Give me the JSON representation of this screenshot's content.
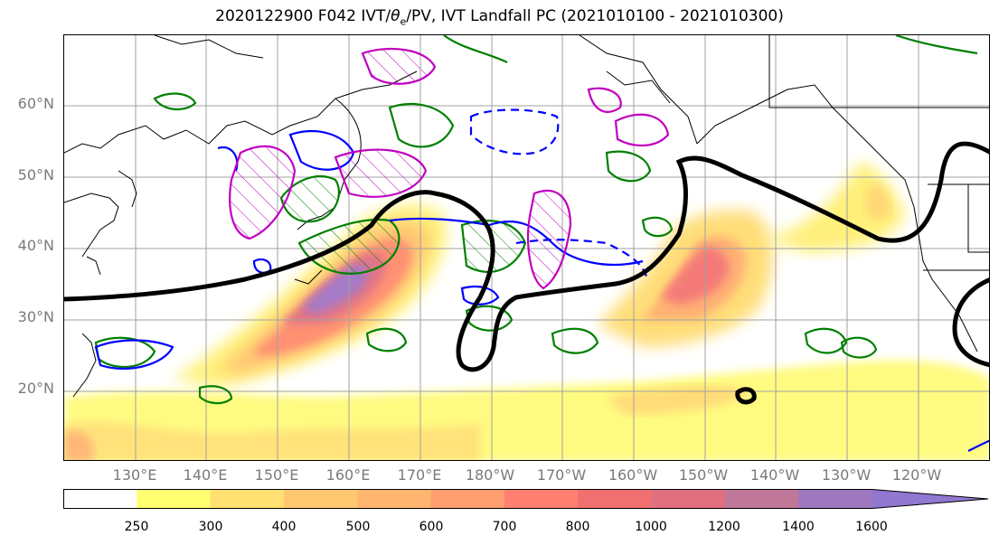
{
  "title": "2020122900 F042 IVT/θe/PV, IVT Landfall PC (2021010100 - 2021010300)",
  "title_parts": {
    "prefix": "2020122900 F042 IVT/",
    "theta": "θ",
    "sub": "e",
    "suffix": "/PV, IVT Landfall PC (2021010100 - 2021010300)"
  },
  "lat_labels": [
    "60°N",
    "50°N",
    "40°N",
    "30°N",
    "20°N"
  ],
  "lon_labels": [
    "130°E",
    "140°E",
    "150°E",
    "160°E",
    "170°E",
    "180°W",
    "170°W",
    "160°W",
    "150°W",
    "140°W",
    "130°W",
    "120°W"
  ],
  "colorbar": {
    "levels": [
      "250",
      "300",
      "400",
      "500",
      "600",
      "700",
      "800",
      "1000",
      "1200",
      "1400",
      "1600"
    ],
    "colors": [
      "#ffffff",
      "#ffff70",
      "#ffe070",
      "#ffc870",
      "#ffb570",
      "#ff9e70",
      "#ff8070",
      "#f07070",
      "#e07080",
      "#c07898",
      "#a078c0",
      "#9078d0"
    ]
  },
  "legend_colors": {
    "pc_contour": "#000000",
    "pv": "#008000",
    "theta_e": "#0000ff",
    "ivt_anomaly": "#c000c0"
  }
}
